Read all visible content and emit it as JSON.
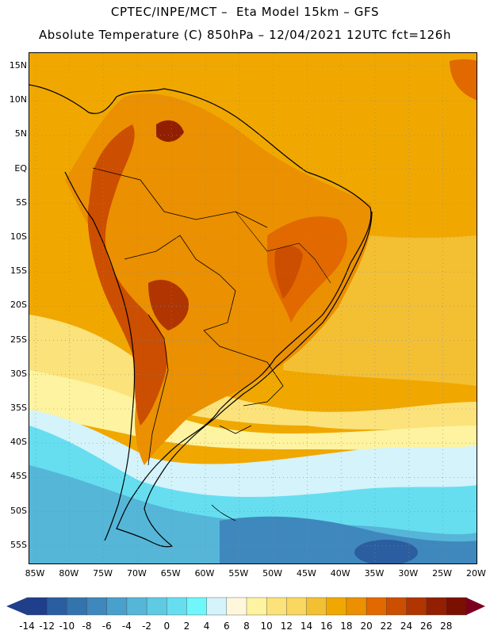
{
  "header": {
    "line1": "CPTEC/INPE/MCT –  Eta Model 15km – GFS",
    "line2": "Absolute Temperature (C) 850hPa – 12/04/2021 12UTC fct=126h"
  },
  "map": {
    "lat_labels": [
      "15N",
      "10N",
      "5N",
      "EQ",
      "5S",
      "10S",
      "15S",
      "20S",
      "25S",
      "30S",
      "35S",
      "40S",
      "45S",
      "50S",
      "55S"
    ],
    "lon_labels": [
      "85W",
      "80W",
      "75W",
      "70W",
      "65W",
      "60W",
      "55W",
      "50W",
      "45W",
      "40W",
      "35W",
      "30W",
      "25W",
      "20W"
    ]
  },
  "colorbar": {
    "labels": [
      "-14",
      "-12",
      "-10",
      "-8",
      "-6",
      "-4",
      "-2",
      "0",
      "2",
      "4",
      "6",
      "8",
      "10",
      "12",
      "14",
      "16",
      "18",
      "20",
      "22",
      "24",
      "26",
      "28"
    ],
    "colors": [
      "#1f3f8c",
      "#2a5ea0",
      "#3474ae",
      "#3f88bd",
      "#4aa0cc",
      "#55b6d8",
      "#5fcae2",
      "#66def0",
      "#6ff7fb",
      "#d4f3fb",
      "#fff7dc",
      "#fdf3a0",
      "#fbe27a",
      "#f9d760",
      "#f4c033",
      "#f0a800",
      "#eb9000",
      "#e16900",
      "#cc4e00",
      "#b03500",
      "#921f00",
      "#7a1000"
    ]
  },
  "regions": [
    {
      "name": "caribbean-warm",
      "color": "#f0a800"
    },
    {
      "name": "atlantic-warm",
      "color": "#f4c033"
    },
    {
      "name": "cool-front",
      "color": "#fdf3a0"
    },
    {
      "name": "cold-ocean",
      "color": "#66def0"
    },
    {
      "name": "very-cold",
      "color": "#3f88bd"
    }
  ]
}
